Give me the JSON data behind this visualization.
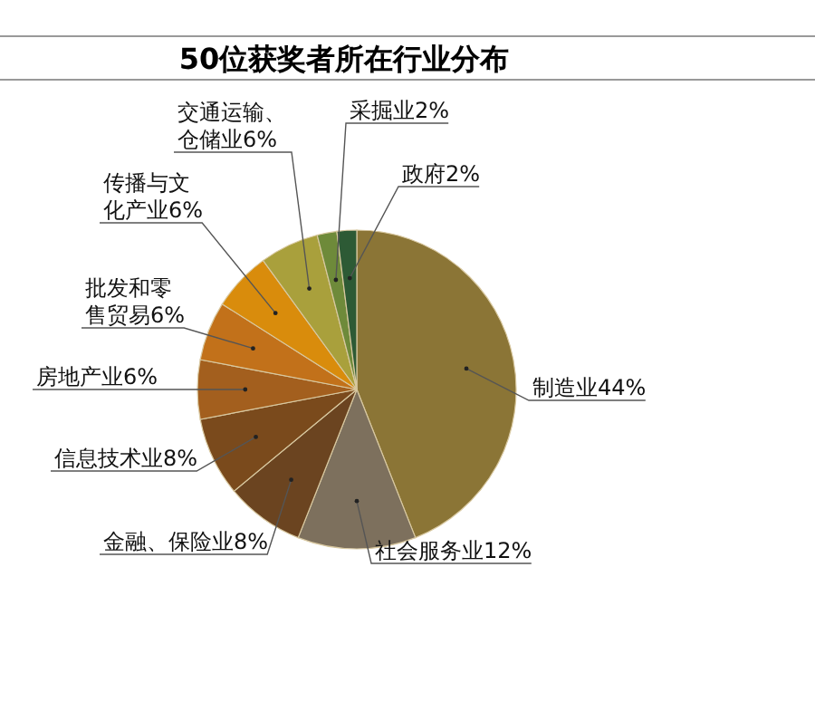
{
  "chart_data": {
    "type": "pie",
    "title": "50位获奖者所在行业分布",
    "categories": [
      "制造业",
      "社会服务业",
      "金融、保险业",
      "信息技术业",
      "房地产业",
      "批发和零售贸易",
      "传播与文化产业",
      "交通运输、仓储业",
      "采掘业",
      "政府"
    ],
    "values": [
      44,
      12,
      8,
      8,
      6,
      6,
      6,
      6,
      2,
      2
    ],
    "value_labels": [
      "44%",
      "12%",
      "8%",
      "8%",
      "6%",
      "6%",
      "6%",
      "6%",
      "2%",
      "2%"
    ],
    "colors": [
      "#8b7536",
      "#7d705d",
      "#6b4420",
      "#7a4a1c",
      "#a35f1e",
      "#c2711a",
      "#d98c0c",
      "#a9a03c",
      "#6e8a3a",
      "#2d5a35"
    ]
  }
}
